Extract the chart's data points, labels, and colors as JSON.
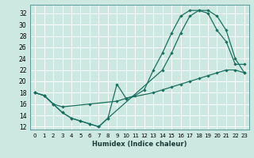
{
  "xlabel": "Humidex (Indice chaleur)",
  "bg_color": "#cce8e0",
  "line_color": "#1a7060",
  "grid_color": "#ffffff",
  "xlim": [
    -0.5,
    23.5
  ],
  "ylim": [
    11.5,
    33.5
  ],
  "xticks": [
    0,
    1,
    2,
    3,
    4,
    5,
    6,
    7,
    8,
    9,
    10,
    11,
    12,
    13,
    14,
    15,
    16,
    17,
    18,
    19,
    20,
    21,
    22,
    23
  ],
  "yticks": [
    12,
    14,
    16,
    18,
    20,
    22,
    24,
    26,
    28,
    30,
    32
  ],
  "line1_x": [
    0,
    1,
    2,
    3,
    4,
    5,
    6,
    7,
    8,
    9,
    10,
    11,
    12,
    13,
    14,
    15,
    16,
    17,
    18,
    19,
    20,
    21,
    22,
    23
  ],
  "line1_y": [
    18,
    17.5,
    16,
    14.5,
    13.5,
    13,
    12.5,
    12,
    13.5,
    19.5,
    17,
    17.5,
    18.5,
    22,
    25,
    28.5,
    31.5,
    32.5,
    32.5,
    32,
    29,
    27,
    23,
    23
  ],
  "line2_x": [
    0,
    1,
    2,
    3,
    4,
    5,
    6,
    7,
    8,
    14,
    15,
    16,
    17,
    18,
    19,
    20,
    21,
    22,
    23
  ],
  "line2_y": [
    18,
    17.5,
    16,
    14.5,
    13.5,
    13,
    12.5,
    12,
    13.5,
    22,
    25,
    28.5,
    31.5,
    32.5,
    32.5,
    31.5,
    29,
    24,
    21.5
  ],
  "line3_x": [
    0,
    1,
    2,
    3,
    6,
    9,
    10,
    13,
    14,
    15,
    16,
    17,
    18,
    19,
    20,
    21,
    22,
    23
  ],
  "line3_y": [
    18,
    17.5,
    16,
    15.5,
    16,
    16.5,
    17,
    18,
    18.5,
    19,
    19.5,
    20,
    20.5,
    21,
    21.5,
    22,
    22,
    21.5
  ]
}
